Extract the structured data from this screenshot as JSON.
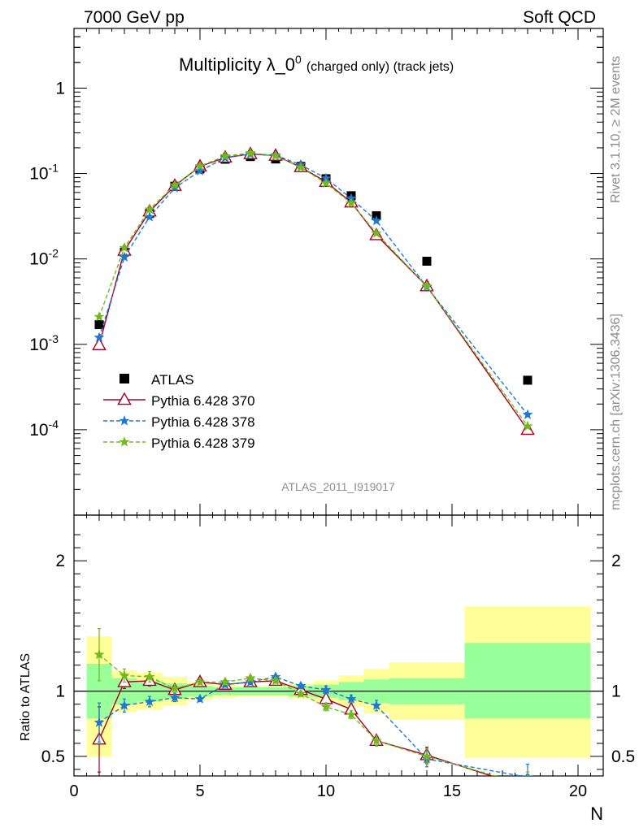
{
  "header": {
    "left": "7000 GeV pp",
    "right": "Soft QCD"
  },
  "side": {
    "top": "Rivet 3.1.10, ≥ 2M events",
    "bottom": "mcplots.cern.ch [arXiv:1306.3436]"
  },
  "chart_data": {
    "type": "scatter",
    "title": "Multiplicity λ_0",
    "title_sup": "0",
    "title_small": "(charged only) (track jets)",
    "analysis_label": "ATLAS_2011_I919017",
    "xlabel": "N",
    "ylabel_main": "",
    "ylabel_ratio": "Ratio to ATLAS",
    "xlim": [
      0,
      21
    ],
    "ylim_main": [
      1e-05,
      5
    ],
    "yscale_main": "log",
    "ylim_ratio": [
      0.35,
      2.35
    ],
    "x_ticks": [
      "0",
      "5",
      "10",
      "15",
      "20"
    ],
    "y_ticks_main": [
      "1",
      "10",
      "10",
      "10",
      "10"
    ],
    "y_ticks_main_exp": [
      "",
      "-1",
      "-2",
      "-3",
      "-4"
    ],
    "y_ticks_ratio": [
      "0.5",
      "1",
      "2"
    ],
    "legend_position": "lower-left",
    "reference": {
      "name": "ATLAS",
      "x": [
        1,
        2,
        3,
        4,
        5,
        6,
        7,
        8,
        9,
        10,
        11,
        12,
        14,
        18
      ],
      "y": [
        0.0017,
        0.012,
        0.034,
        0.071,
        0.113,
        0.147,
        0.158,
        0.148,
        0.121,
        0.087,
        0.055,
        0.032,
        0.0094,
        0.00038
      ],
      "band_edges": [
        0.5,
        1.5,
        2.5,
        3.5,
        4.5,
        5.5,
        6.5,
        7.5,
        8.5,
        9.5,
        10.5,
        11.5,
        12.5,
        15.5,
        20.5
      ],
      "band_inner": [
        [
          0.79,
          1.21
        ],
        [
          0.9,
          1.1
        ],
        [
          0.92,
          1.08
        ],
        [
          0.94,
          1.06
        ],
        [
          0.96,
          1.04
        ],
        [
          0.97,
          1.03
        ],
        [
          0.97,
          1.03
        ],
        [
          0.97,
          1.03
        ],
        [
          0.96,
          1.04
        ],
        [
          0.95,
          1.05
        ],
        [
          0.93,
          1.07
        ],
        [
          0.91,
          1.09
        ],
        [
          0.9,
          1.1
        ],
        [
          0.79,
          1.37
        ]
      ],
      "band_outer": [
        [
          0.5,
          1.42
        ],
        [
          0.84,
          1.16
        ],
        [
          0.86,
          1.14
        ],
        [
          0.89,
          1.11
        ],
        [
          0.93,
          1.07
        ],
        [
          0.95,
          1.05
        ],
        [
          0.96,
          1.04
        ],
        [
          0.96,
          1.04
        ],
        [
          0.94,
          1.06
        ],
        [
          0.92,
          1.08
        ],
        [
          0.88,
          1.12
        ],
        [
          0.83,
          1.17
        ],
        [
          0.78,
          1.22
        ],
        [
          0.49,
          1.65
        ]
      ]
    },
    "series": [
      {
        "name": "Pythia 6.428 370",
        "color": "#a50021",
        "dashed": false,
        "marker": "triangle",
        "x": [
          1,
          2,
          3,
          4,
          5,
          6,
          7,
          8,
          9,
          10,
          11,
          12,
          14,
          18
        ],
        "y": [
          0.00098,
          0.0125,
          0.036,
          0.072,
          0.121,
          0.154,
          0.169,
          0.162,
          0.119,
          0.08,
          0.046,
          0.019,
          0.0048,
          0.0001
        ],
        "ratio": [
          0.63,
          1.07,
          1.08,
          1.01,
          1.07,
          1.05,
          1.07,
          1.08,
          1.01,
          0.94,
          0.86,
          0.62,
          0.51,
          0.26
        ],
        "ratio_err": [
          0.25,
          0.05,
          0.04,
          0.03,
          0.02,
          0.02,
          0.02,
          0.02,
          0.02,
          0.03,
          0.03,
          0.04,
          0.06,
          0.1
        ]
      },
      {
        "name": "Pythia 6.428 378",
        "color": "#1f78d0",
        "dashed": true,
        "marker": "star",
        "x": [
          1,
          2,
          3,
          4,
          5,
          6,
          7,
          8,
          9,
          10,
          11,
          12,
          14,
          18
        ],
        "y": [
          0.0012,
          0.0105,
          0.031,
          0.068,
          0.107,
          0.153,
          0.169,
          0.164,
          0.126,
          0.088,
          0.051,
          0.028,
          0.0047,
          0.00015
        ],
        "ratio": [
          0.76,
          0.89,
          0.92,
          0.95,
          0.94,
          1.05,
          1.07,
          1.11,
          1.04,
          1.01,
          0.94,
          0.89,
          0.48,
          0.34
        ],
        "ratio_err": [
          0.15,
          0.05,
          0.04,
          0.03,
          0.02,
          0.02,
          0.02,
          0.02,
          0.02,
          0.03,
          0.03,
          0.04,
          0.06,
          0.1
        ]
      },
      {
        "name": "Pythia 6.428 379",
        "color": "#72b81e",
        "dashed": true,
        "marker": "star",
        "x": [
          1,
          2,
          3,
          4,
          5,
          6,
          7,
          8,
          9,
          10,
          11,
          12,
          14,
          18
        ],
        "y": [
          0.0021,
          0.0135,
          0.038,
          0.073,
          0.122,
          0.16,
          0.174,
          0.161,
          0.118,
          0.077,
          0.045,
          0.02,
          0.0048,
          0.00011
        ],
        "ratio": [
          1.28,
          1.12,
          1.11,
          1.02,
          1.07,
          1.07,
          1.1,
          1.08,
          0.98,
          0.88,
          0.82,
          0.62,
          0.5,
          0.28
        ],
        "ratio_err": [
          0.2,
          0.05,
          0.04,
          0.03,
          0.02,
          0.02,
          0.02,
          0.02,
          0.02,
          0.03,
          0.03,
          0.04,
          0.06,
          0.1
        ]
      }
    ]
  }
}
